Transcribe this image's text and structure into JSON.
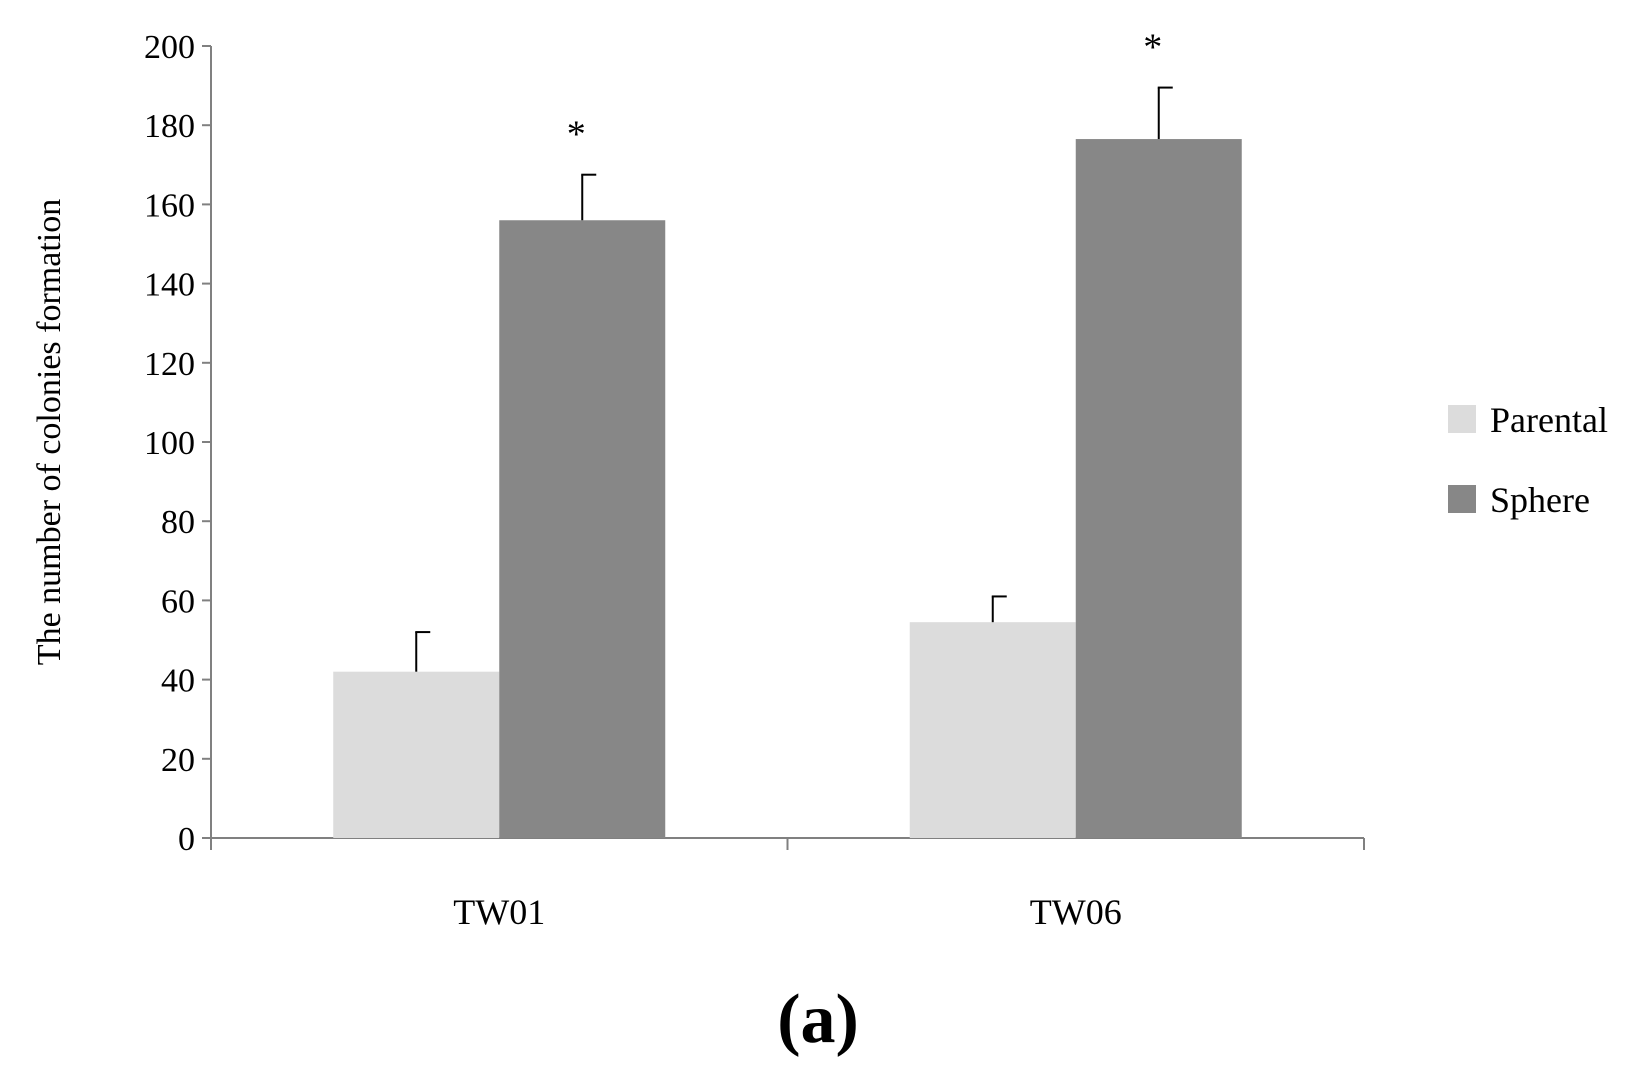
{
  "chart_data": {
    "type": "bar",
    "categories": [
      "TW01",
      "TW06"
    ],
    "series": [
      {
        "name": "Parental",
        "values": [
          42,
          54.5
        ],
        "error": [
          10,
          6.5
        ],
        "color": "#dcdcdc"
      },
      {
        "name": "Sphere",
        "values": [
          156,
          176.5
        ],
        "error": [
          11.5,
          13
        ],
        "color": "#878787"
      }
    ],
    "annotations": [
      {
        "category": "TW01",
        "series": "Sphere",
        "text": "*"
      },
      {
        "category": "TW06",
        "series": "Sphere",
        "text": "*"
      }
    ],
    "ylabel": "The number of colonies formation",
    "xlabel": "",
    "ylim": [
      0,
      200
    ],
    "yticks": [
      0,
      20,
      40,
      60,
      80,
      100,
      120,
      140,
      160,
      180,
      200
    ],
    "grid": false,
    "legend_position": "right"
  },
  "panel_label": "(a)"
}
